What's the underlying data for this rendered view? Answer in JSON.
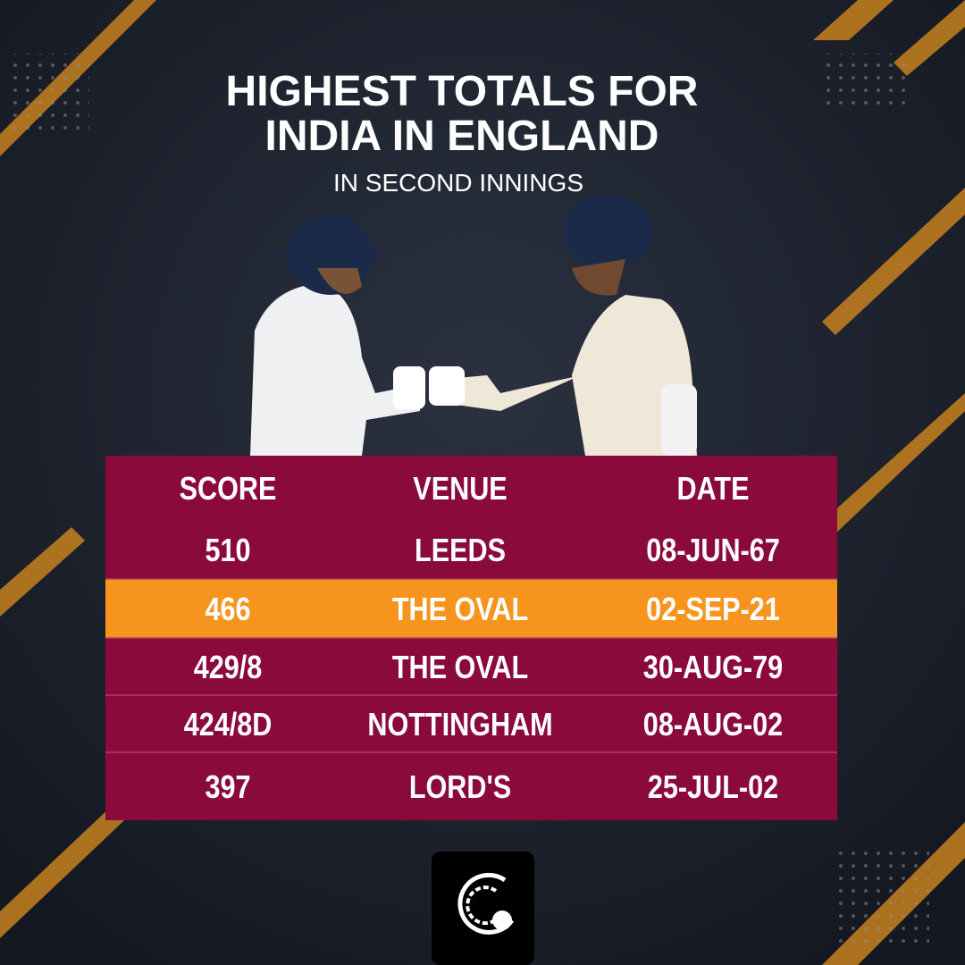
{
  "header": {
    "title_lines": [
      "HIGHEST TOTALS FOR",
      "INDIA IN ENGLAND"
    ],
    "subtitle": "IN SECOND INNINGS"
  },
  "table": {
    "columns": [
      "SCORE",
      "VENUE",
      "DATE"
    ],
    "header_color": "#8a0b3b",
    "rows": [
      [
        "510",
        "LEEDS",
        "08-JUN-67"
      ],
      [
        "466",
        "THE OVAL",
        "02-SEP-21"
      ],
      [
        "429/8",
        "THE OVAL",
        "30-AUG-79"
      ],
      [
        "424/8D",
        "NOTTINGHAM",
        "08-AUG-02"
      ],
      [
        "397",
        "LORD'S",
        "25-JUL-02"
      ]
    ],
    "row_colors": [
      "#8a0b3b",
      "#f7941d",
      "#8a0b3b",
      "#8a0b3b",
      "#8a0b3b"
    ]
  }
}
